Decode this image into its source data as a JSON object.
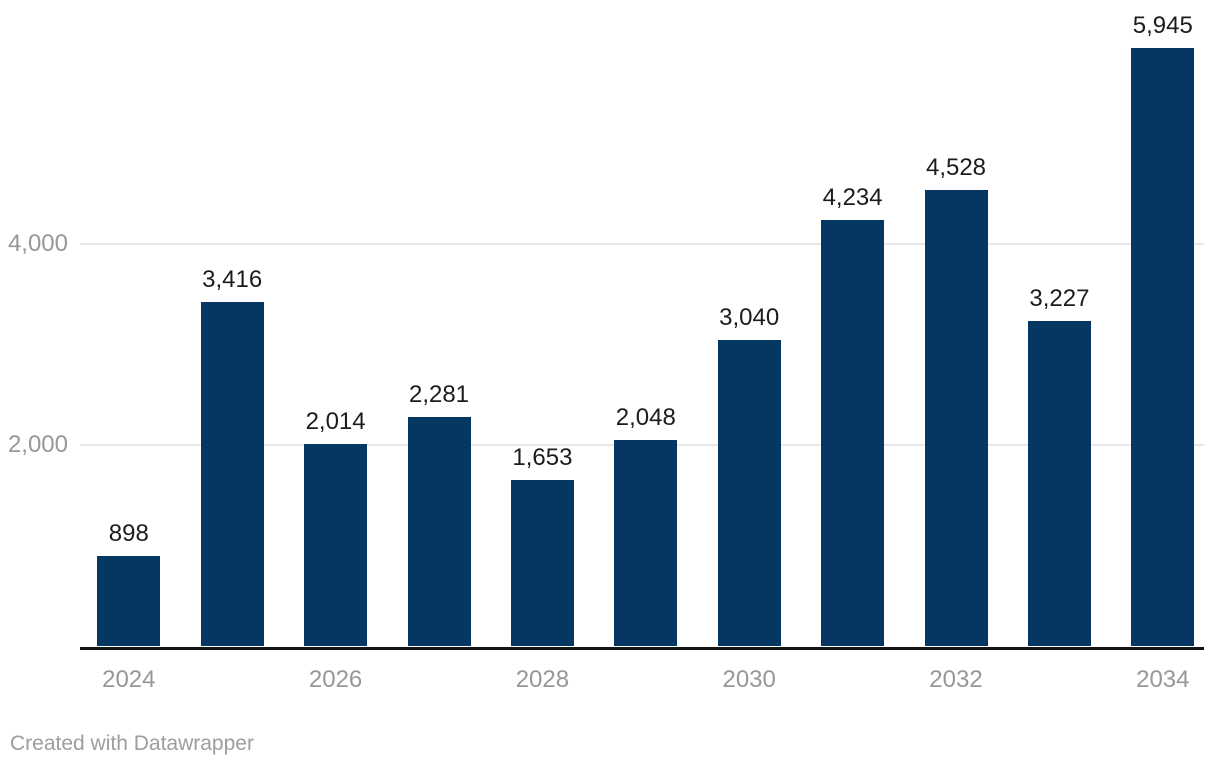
{
  "chart_data": {
    "type": "bar",
    "title": "",
    "categories": [
      "2024",
      "2025",
      "2026",
      "2027",
      "2028",
      "2029",
      "2030",
      "2031",
      "2032",
      "2033",
      "2034"
    ],
    "values": [
      898,
      3416,
      2014,
      2281,
      1653,
      2048,
      3040,
      4234,
      4528,
      3227,
      5945
    ],
    "value_labels": [
      "898",
      "3,416",
      "2,014",
      "2,281",
      "1,653",
      "2,048",
      "3,040",
      "4,234",
      "4,528",
      "3,227",
      "5,945"
    ],
    "x_tick_labels": [
      "2024",
      "2026",
      "2028",
      "2030",
      "2032",
      "2034"
    ],
    "y_ticks": [
      {
        "value": 2000,
        "label": "2,000"
      },
      {
        "value": 4000,
        "label": "4,000"
      }
    ],
    "ylim": [
      0,
      6000
    ],
    "xlabel": "",
    "ylabel": "",
    "grid": "horizontal-only",
    "legend": "none",
    "colors": {
      "bar": "#063763",
      "gridline": "#e7e7e7",
      "axis_line": "#141414",
      "value_label": "#1c1c1c",
      "tick_label": "#979797",
      "credit": "#9d9d9d"
    }
  },
  "footer": {
    "credit": "Created with Datawrapper"
  }
}
